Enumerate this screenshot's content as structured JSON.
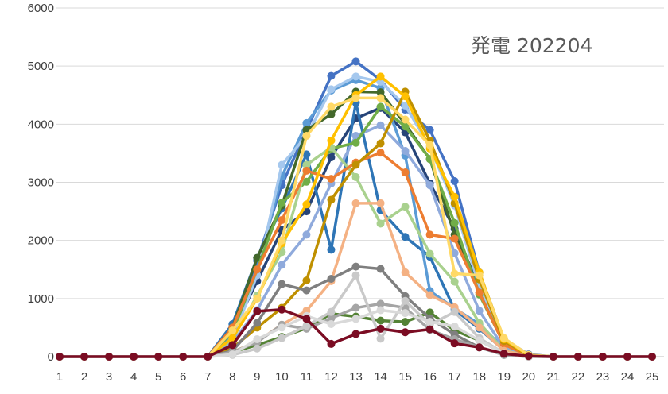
{
  "chart_data": {
    "type": "line",
    "title": "発電 202204",
    "xlabel": "",
    "ylabel": "",
    "x": [
      1,
      2,
      3,
      4,
      5,
      6,
      7,
      8,
      9,
      10,
      11,
      12,
      13,
      14,
      15,
      16,
      17,
      18,
      19,
      20,
      21,
      22,
      23,
      24,
      25
    ],
    "x_tick_labels": [
      "1",
      "2",
      "3",
      "4",
      "5",
      "6",
      "7",
      "8",
      "9",
      "10",
      "11",
      "12",
      "13",
      "14",
      "15",
      "16",
      "17",
      "18",
      "19",
      "20",
      "21",
      "22",
      "23",
      "24",
      "25"
    ],
    "ylim": [
      0,
      6000
    ],
    "y_ticks": [
      0,
      1000,
      2000,
      3000,
      4000,
      5000,
      6000
    ],
    "y_tick_labels": [
      "0",
      "1000",
      "2000",
      "3000",
      "4000",
      "5000",
      "6000"
    ],
    "grid": true,
    "legend": "none",
    "series": [
      {
        "color": "#4472C4",
        "values": [
          0,
          0,
          0,
          0,
          0,
          0,
          0,
          500,
          1650,
          2950,
          3900,
          4830,
          5080,
          4760,
          4250,
          3900,
          3020,
          1450,
          300,
          40,
          0,
          0,
          0,
          0,
          0
        ]
      },
      {
        "color": "#264478",
        "values": [
          0,
          0,
          0,
          0,
          0,
          0,
          0,
          420,
          1300,
          2180,
          2500,
          3430,
          4100,
          4280,
          3860,
          2980,
          2200,
          1180,
          240,
          20,
          0,
          0,
          0,
          0,
          0
        ]
      },
      {
        "color": "#2E75B6",
        "values": [
          0,
          0,
          0,
          0,
          0,
          0,
          0,
          560,
          1700,
          2550,
          3480,
          1840,
          4370,
          2520,
          2060,
          1720,
          810,
          480,
          110,
          10,
          0,
          0,
          0,
          0,
          0
        ]
      },
      {
        "color": "#5B9BD5",
        "values": [
          0,
          0,
          0,
          0,
          0,
          0,
          0,
          380,
          1500,
          3100,
          4020,
          4580,
          4760,
          4620,
          3460,
          1130,
          830,
          560,
          140,
          10,
          0,
          0,
          0,
          0,
          0
        ]
      },
      {
        "color": "#A5C8EE",
        "values": [
          0,
          0,
          0,
          0,
          0,
          0,
          0,
          300,
          1400,
          3300,
          3800,
          4600,
          4820,
          4730,
          4320,
          3610,
          2600,
          1210,
          270,
          20,
          0,
          0,
          0,
          0,
          0
        ]
      },
      {
        "color": "#8FAADC",
        "values": [
          0,
          0,
          0,
          0,
          0,
          0,
          0,
          250,
          800,
          1580,
          2100,
          2980,
          3800,
          3980,
          3540,
          2950,
          1780,
          790,
          150,
          10,
          0,
          0,
          0,
          0,
          0
        ]
      },
      {
        "color": "#43682B",
        "values": [
          0,
          0,
          0,
          0,
          0,
          0,
          0,
          500,
          1700,
          2600,
          3900,
          4170,
          4560,
          4550,
          4000,
          3400,
          2100,
          1100,
          220,
          20,
          0,
          0,
          0,
          0,
          0
        ]
      },
      {
        "color": "#548235",
        "values": [
          0,
          0,
          0,
          0,
          0,
          0,
          0,
          80,
          200,
          340,
          490,
          740,
          690,
          620,
          600,
          760,
          450,
          280,
          60,
          0,
          0,
          0,
          0,
          0,
          0
        ]
      },
      {
        "color": "#70AD47",
        "values": [
          0,
          0,
          0,
          0,
          0,
          0,
          0,
          420,
          1500,
          2650,
          3010,
          3580,
          3680,
          4300,
          3960,
          3400,
          2300,
          1070,
          220,
          15,
          0,
          0,
          0,
          0,
          0
        ]
      },
      {
        "color": "#A9D18E",
        "values": [
          0,
          0,
          0,
          0,
          0,
          0,
          0,
          300,
          1050,
          1800,
          3300,
          3600,
          3090,
          2290,
          2580,
          1770,
          1290,
          580,
          110,
          10,
          0,
          0,
          0,
          0,
          0
        ]
      },
      {
        "color": "#ED7D31",
        "values": [
          0,
          0,
          0,
          0,
          0,
          0,
          0,
          500,
          1500,
          2350,
          3200,
          3060,
          3340,
          3510,
          3170,
          2100,
          2030,
          1100,
          210,
          15,
          0,
          0,
          0,
          0,
          0
        ]
      },
      {
        "color": "#F4B183",
        "values": [
          0,
          0,
          0,
          0,
          0,
          0,
          0,
          80,
          260,
          550,
          790,
          1300,
          2640,
          2640,
          1450,
          1060,
          850,
          500,
          100,
          10,
          0,
          0,
          0,
          0,
          0
        ]
      },
      {
        "color": "#BF9000",
        "values": [
          0,
          0,
          0,
          0,
          0,
          0,
          0,
          150,
          500,
          840,
          1310,
          2700,
          3300,
          3670,
          4560,
          3720,
          2640,
          1330,
          270,
          20,
          0,
          0,
          0,
          0,
          0
        ]
      },
      {
        "color": "#FFC000",
        "values": [
          0,
          0,
          0,
          0,
          0,
          0,
          0,
          320,
          1000,
          1950,
          2620,
          3720,
          4500,
          4820,
          4480,
          3580,
          2750,
          1450,
          300,
          25,
          0,
          0,
          0,
          0,
          0
        ]
      },
      {
        "color": "#FFD966",
        "values": [
          0,
          0,
          0,
          0,
          0,
          0,
          0,
          450,
          1000,
          2000,
          3800,
          4300,
          4450,
          4450,
          4080,
          3640,
          1430,
          1400,
          320,
          30,
          0,
          0,
          0,
          0,
          0
        ]
      },
      {
        "color": "#7F7F7F",
        "values": [
          0,
          0,
          0,
          0,
          0,
          0,
          0,
          100,
          580,
          1250,
          1140,
          1340,
          1550,
          1510,
          1040,
          660,
          380,
          160,
          30,
          0,
          0,
          0,
          0,
          0,
          0
        ]
      },
      {
        "color": "#A5A5A5",
        "values": [
          0,
          0,
          0,
          0,
          0,
          0,
          0,
          80,
          250,
          550,
          480,
          660,
          840,
          910,
          840,
          460,
          300,
          160,
          30,
          0,
          0,
          0,
          0,
          0,
          0
        ]
      },
      {
        "color": "#C9C9C9",
        "values": [
          0,
          0,
          0,
          0,
          0,
          0,
          0,
          30,
          140,
          320,
          530,
          770,
          1400,
          310,
          960,
          550,
          770,
          320,
          60,
          0,
          0,
          0,
          0,
          0,
          0
        ]
      },
      {
        "color": "#D9D9D9",
        "values": [
          0,
          0,
          0,
          0,
          0,
          0,
          0,
          40,
          300,
          500,
          700,
          560,
          650,
          800,
          750,
          600,
          520,
          280,
          60,
          0,
          0,
          0,
          0,
          0,
          0
        ]
      },
      {
        "color": "#7B0C23",
        "values": [
          0,
          0,
          0,
          0,
          0,
          0,
          0,
          200,
          780,
          810,
          650,
          220,
          390,
          480,
          420,
          470,
          230,
          160,
          50,
          10,
          0,
          0,
          0,
          0,
          0
        ]
      }
    ]
  }
}
